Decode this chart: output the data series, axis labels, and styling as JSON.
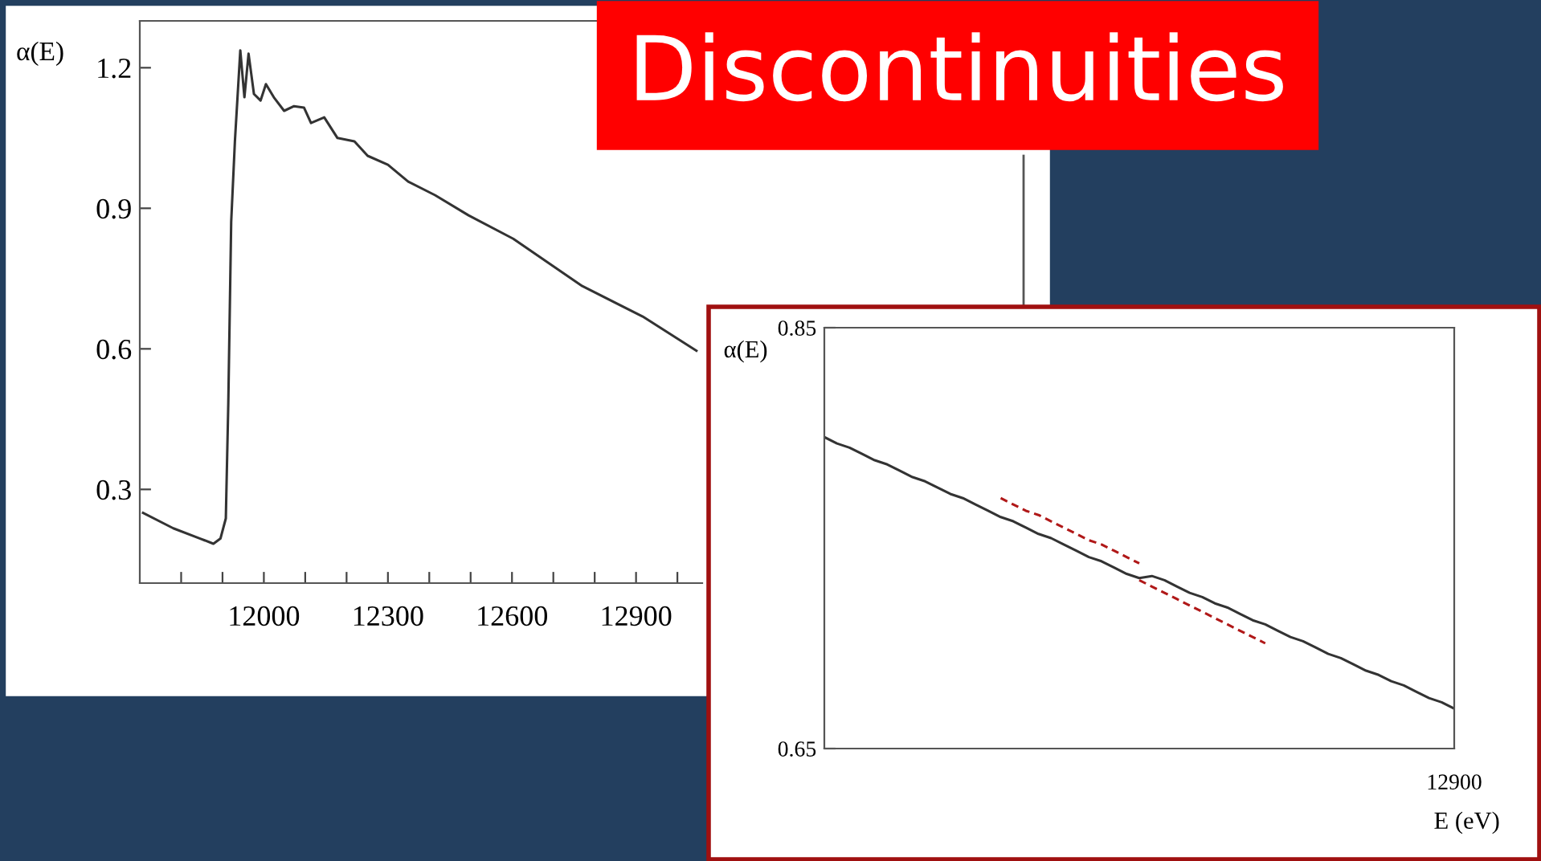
{
  "chart_data": [
    {
      "type": "line",
      "title": "Discontinuities",
      "ylabel": "α(E)",
      "xlim": [
        11700,
        13060
      ],
      "ylim": [
        0.1,
        1.3
      ],
      "xticks": [
        {
          "value": 11800,
          "label": null
        },
        {
          "value": 11900,
          "label": null
        },
        12000,
        {
          "value": 12100,
          "label": null
        },
        {
          "value": 12200,
          "label": null
        },
        12300,
        {
          "value": 12400,
          "label": null
        },
        {
          "value": 12500,
          "label": null
        },
        12600,
        {
          "value": 12700,
          "label": null
        },
        {
          "value": 12800,
          "label": null
        },
        12900,
        {
          "value": 13000,
          "label": null
        }
      ],
      "yticks": [
        0.3,
        0.6,
        0.9,
        1.2
      ],
      "grid": false,
      "legend": false,
      "marker": "none",
      "series": [
        {
          "color": "#333333",
          "line_style": "solid",
          "x": [
            11708,
            11781,
            11846,
            11878,
            11895,
            11908,
            11914,
            11921,
            11930,
            11943,
            11953,
            11963,
            11976,
            11992,
            12005,
            12024,
            12049,
            12073,
            12097,
            12114,
            12146,
            12178,
            12219,
            12251,
            12300,
            12349,
            12414,
            12495,
            12603,
            12770,
            12916,
            13046
          ],
          "values": [
            0.25,
            0.217,
            0.195,
            0.184,
            0.195,
            0.238,
            0.483,
            0.871,
            1.043,
            1.237,
            1.137,
            1.23,
            1.144,
            1.13,
            1.165,
            1.137,
            1.108,
            1.118,
            1.115,
            1.082,
            1.094,
            1.05,
            1.043,
            1.012,
            0.993,
            0.957,
            0.928,
            0.885,
            0.835,
            0.734,
            0.669,
            0.596
          ]
        }
      ]
    },
    {
      "type": "line",
      "ylabel": "α(E)",
      "xlabel": "E (eV)",
      "annotations": [
        "12900"
      ],
      "categories": [
        null,
        null,
        null,
        null,
        null,
        null,
        null,
        null,
        null,
        null,
        null,
        null,
        null,
        null,
        null,
        null,
        null,
        null,
        null,
        null,
        null,
        null,
        null,
        null,
        null,
        null,
        null,
        null,
        null,
        null,
        null,
        null,
        null,
        null,
        null,
        null,
        null,
        null,
        null,
        null,
        null,
        null,
        null,
        null,
        null,
        null,
        null,
        null,
        null,
        null,
        null
      ],
      "ylim": [
        0.65,
        0.85
      ],
      "yticks": [
        0.65,
        0.85
      ],
      "grid": false,
      "legend": false,
      "marker": "none",
      "series": [
        {
          "color": "#333333",
          "line_style": "solid",
          "values": [
            0.798,
            0.795,
            0.793,
            0.79,
            0.787,
            0.785,
            0.782,
            0.779,
            0.777,
            0.774,
            0.771,
            0.769,
            0.766,
            0.763,
            0.76,
            0.758,
            0.755,
            0.752,
            0.75,
            0.747,
            0.744,
            0.741,
            0.739,
            0.736,
            0.733,
            0.731,
            0.732,
            0.73,
            0.727,
            0.724,
            0.722,
            0.719,
            0.717,
            0.714,
            0.711,
            0.709,
            0.706,
            0.703,
            0.701,
            0.698,
            0.695,
            0.693,
            0.69,
            0.687,
            0.685,
            0.682,
            0.68,
            0.677,
            0.674,
            0.672,
            0.669
          ]
        },
        {
          "color": "#b01818",
          "line_style": "dashed",
          "values": [
            null,
            null,
            null,
            null,
            null,
            null,
            null,
            null,
            null,
            null,
            null,
            null,
            null,
            null,
            0.769,
            0.766,
            0.763,
            0.761,
            0.758,
            0.755,
            0.752,
            0.749,
            0.747,
            0.744,
            0.741,
            0.738,
            null,
            null,
            null,
            null,
            null,
            null,
            null,
            null,
            null,
            null,
            null,
            null,
            null,
            null,
            null,
            null,
            null,
            null,
            null,
            null,
            null,
            null,
            null,
            null,
            null
          ]
        },
        {
          "color": "#b01818",
          "line_style": "dashed",
          "values": [
            null,
            null,
            null,
            null,
            null,
            null,
            null,
            null,
            null,
            null,
            null,
            null,
            null,
            null,
            null,
            null,
            null,
            null,
            null,
            null,
            null,
            null,
            null,
            null,
            null,
            0.73,
            0.727,
            0.724,
            0.721,
            0.718,
            0.715,
            0.712,
            0.709,
            0.706,
            0.703,
            0.7,
            null,
            null,
            null,
            null,
            null,
            null,
            null,
            null,
            null,
            null,
            null,
            null,
            null,
            null,
            null
          ]
        }
      ]
    }
  ]
}
